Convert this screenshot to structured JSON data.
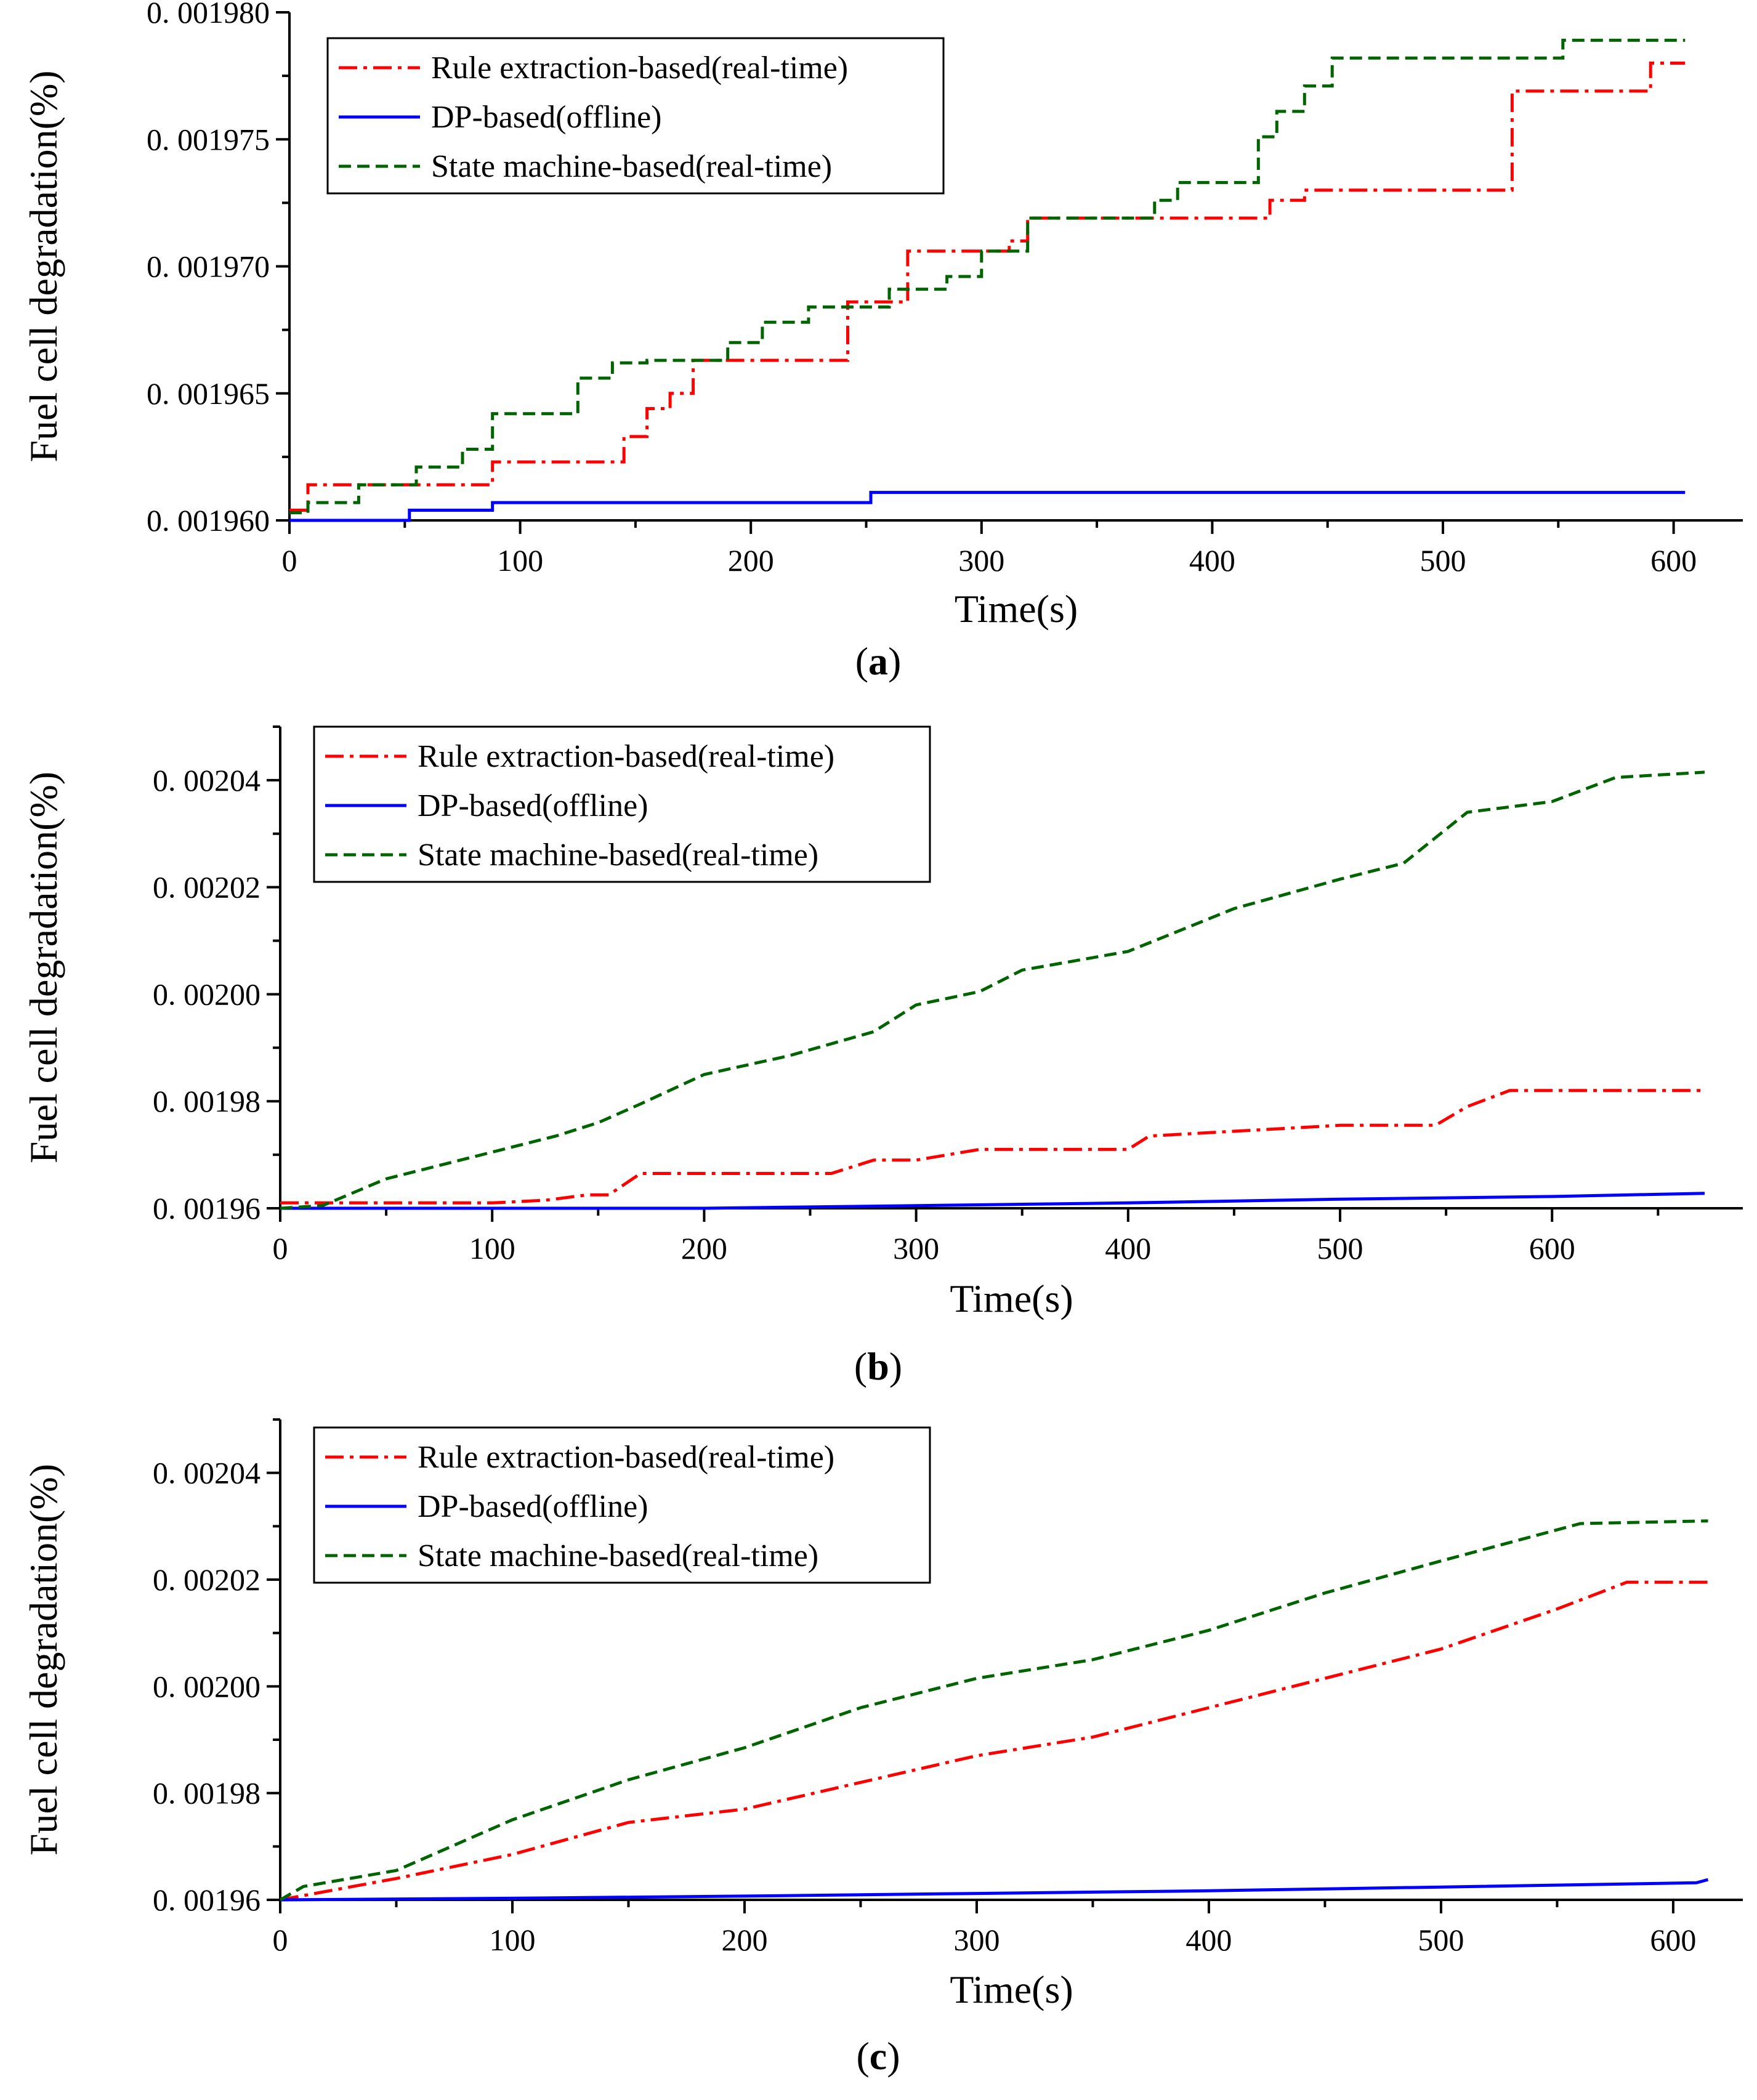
{
  "chart_data": [
    {
      "type": "line",
      "panel_label": "(a)",
      "xlabel": "Time(s)",
      "ylabel": "Fuel cell degradation(%)",
      "xlim": [
        0,
        630
      ],
      "ylim": [
        0.00196,
        0.00198
      ],
      "xticks": [
        0,
        100,
        200,
        300,
        400,
        500,
        600
      ],
      "xtick_labels": [
        "0",
        "100",
        "200",
        "300",
        "400",
        "500",
        "600"
      ],
      "yticks": [
        0.00196,
        0.001965,
        0.00197,
        0.001975,
        0.00198
      ],
      "ytick_labels": [
        "0. 001960",
        "0. 001965",
        "0. 001970",
        "0. 001975",
        "0. 001980"
      ],
      "legend_position": "top-left",
      "series": [
        {
          "name": "Rule extraction-based(real-time)",
          "color": "#ff0000",
          "style": "dashdot",
          "step": true,
          "x": [
            0,
            8,
            88,
            145,
            155,
            165,
            175,
            242,
            268,
            312,
            320,
            425,
            440,
            530,
            590,
            605
          ],
          "y": [
            0.0019604,
            0.0019614,
            0.0019623,
            0.0019633,
            0.0019644,
            0.001965,
            0.0019663,
            0.0019686,
            0.0019706,
            0.001971,
            0.0019719,
            0.0019726,
            0.001973,
            0.0019769,
            0.001978,
            0.001978
          ]
        },
        {
          "name": "DP-based(offline)",
          "color": "#0000ff",
          "style": "solid",
          "step": true,
          "x": [
            0,
            52,
            88,
            252,
            605
          ],
          "y": [
            0.00196,
            0.0019604,
            0.0019607,
            0.0019611,
            0.0019611
          ],
          "y_note": "final value approximately 0.001961"
        },
        {
          "name": "State machine-based(real-time)",
          "color": "#006400",
          "style": "dashed",
          "step": true,
          "x": [
            0,
            8,
            30,
            55,
            75,
            88,
            125,
            140,
            155,
            190,
            205,
            225,
            260,
            285,
            300,
            320,
            375,
            385,
            420,
            428,
            440,
            452,
            552,
            605
          ],
          "y": [
            0.0019603,
            0.0019607,
            0.0019614,
            0.0019621,
            0.0019628,
            0.0019642,
            0.0019656,
            0.0019662,
            0.0019663,
            0.001967,
            0.0019678,
            0.0019684,
            0.0019691,
            0.0019696,
            0.0019706,
            0.0019719,
            0.0019726,
            0.0019733,
            0.0019751,
            0.0019761,
            0.0019771,
            0.0019782,
            0.0019789,
            0.0019789
          ]
        }
      ]
    },
    {
      "type": "line",
      "panel_label": "(b)",
      "xlabel": "Time(s)",
      "ylabel": "Fuel cell degradation(%)",
      "xlim": [
        0,
        690
      ],
      "ylim": [
        0.00196,
        0.00205
      ],
      "xticks": [
        0,
        100,
        200,
        300,
        400,
        500,
        600
      ],
      "xtick_labels": [
        "0",
        "100",
        "200",
        "300",
        "400",
        "500",
        "600"
      ],
      "yticks": [
        0.00196,
        0.00198,
        0.002,
        0.00202,
        0.00204
      ],
      "ytick_labels": [
        "0. 00196",
        "0. 00198",
        "0. 00200",
        "0. 00202",
        "0. 00204"
      ],
      "legend_position": "top-left",
      "series": [
        {
          "name": "Rule extraction-based(real-time)",
          "color": "#ff0000",
          "style": "dashdot",
          "step": false,
          "x": [
            0,
            100,
            125,
            145,
            155,
            170,
            200,
            260,
            280,
            300,
            330,
            400,
            410,
            500,
            545,
            560,
            580,
            672
          ],
          "y": [
            0.001961,
            0.001961,
            0.0019615,
            0.0019625,
            0.0019625,
            0.0019665,
            0.0019665,
            0.0019665,
            0.001969,
            0.001969,
            0.001971,
            0.001971,
            0.0019735,
            0.0019755,
            0.0019755,
            0.001979,
            0.001982,
            0.001982
          ]
        },
        {
          "name": "DP-based(offline)",
          "color": "#0000ff",
          "style": "solid",
          "step": false,
          "x": [
            0,
            200,
            300,
            400,
            500,
            600,
            672
          ],
          "y": [
            0.00196,
            0.00196,
            0.0019605,
            0.001961,
            0.0019617,
            0.0019622,
            0.0019628
          ]
        },
        {
          "name": "State machine-based(real-time)",
          "color": "#006400",
          "style": "dashed",
          "step": false,
          "x": [
            0,
            20,
            50,
            100,
            130,
            150,
            170,
            200,
            240,
            280,
            300,
            330,
            350,
            400,
            450,
            500,
            530,
            560,
            600,
            630,
            672
          ],
          "y": [
            0.00196,
            0.0019605,
            0.0019655,
            0.0019705,
            0.0019735,
            0.001976,
            0.0019795,
            0.001985,
            0.0019885,
            0.001993,
            0.001998,
            0.0020005,
            0.0020045,
            0.002008,
            0.002016,
            0.0020215,
            0.0020245,
            0.002034,
            0.002036,
            0.0020405,
            0.0020415
          ]
        }
      ]
    },
    {
      "type": "line",
      "panel_label": "(c)",
      "xlabel": "Time(s)",
      "ylabel": "Fuel cell degradation(%)",
      "xlim": [
        0,
        630
      ],
      "ylim": [
        0.00196,
        0.00205
      ],
      "xticks": [
        0,
        100,
        200,
        300,
        400,
        500,
        600
      ],
      "xtick_labels": [
        "0",
        "100",
        "200",
        "300",
        "400",
        "500",
        "600"
      ],
      "yticks": [
        0.00196,
        0.00198,
        0.002,
        0.00202,
        0.00204
      ],
      "ytick_labels": [
        "0. 00196",
        "0. 00198",
        "0. 00200",
        "0. 00202",
        "0. 00204"
      ],
      "legend_position": "top-left",
      "series": [
        {
          "name": "Rule extraction-based(real-time)",
          "color": "#ff0000",
          "style": "dashdot",
          "step": false,
          "x": [
            0,
            50,
            100,
            150,
            200,
            250,
            300,
            350,
            400,
            450,
            500,
            550,
            580,
            615
          ],
          "y": [
            0.00196,
            0.001964,
            0.0019685,
            0.0019745,
            0.001977,
            0.001982,
            0.001987,
            0.0019905,
            0.001996,
            0.0020015,
            0.002007,
            0.0020145,
            0.0020195,
            0.0020195
          ]
        },
        {
          "name": "DP-based(offline)",
          "color": "#0000ff",
          "style": "solid",
          "step": false,
          "x": [
            0,
            100,
            200,
            300,
            400,
            500,
            610,
            615
          ],
          "y": [
            0.00196,
            0.0019603,
            0.0019607,
            0.0019612,
            0.0019617,
            0.0019624,
            0.0019632,
            0.0019638
          ]
        },
        {
          "name": "State machine-based(real-time)",
          "color": "#006400",
          "style": "dashed",
          "step": false,
          "x": [
            0,
            10,
            50,
            100,
            150,
            200,
            250,
            300,
            350,
            400,
            450,
            500,
            560,
            615
          ],
          "y": [
            0.00196,
            0.0019625,
            0.0019655,
            0.001975,
            0.0019825,
            0.0019885,
            0.001996,
            0.0020015,
            0.002005,
            0.0020105,
            0.0020175,
            0.0020235,
            0.0020305,
            0.002031
          ]
        }
      ]
    }
  ]
}
